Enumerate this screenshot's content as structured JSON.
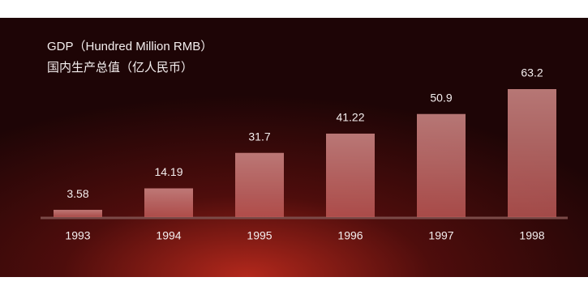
{
  "chart_data": {
    "type": "bar",
    "title": "GDP（Hundred Million RMB）",
    "subtitle": "国内生产总值（亿人民币）",
    "categories": [
      "1993",
      "1994",
      "1995",
      "1996",
      "1997",
      "1998"
    ],
    "values": [
      3.58,
      14.19,
      31.7,
      41.22,
      50.9,
      63.2
    ],
    "color": "#c9605e"
  }
}
